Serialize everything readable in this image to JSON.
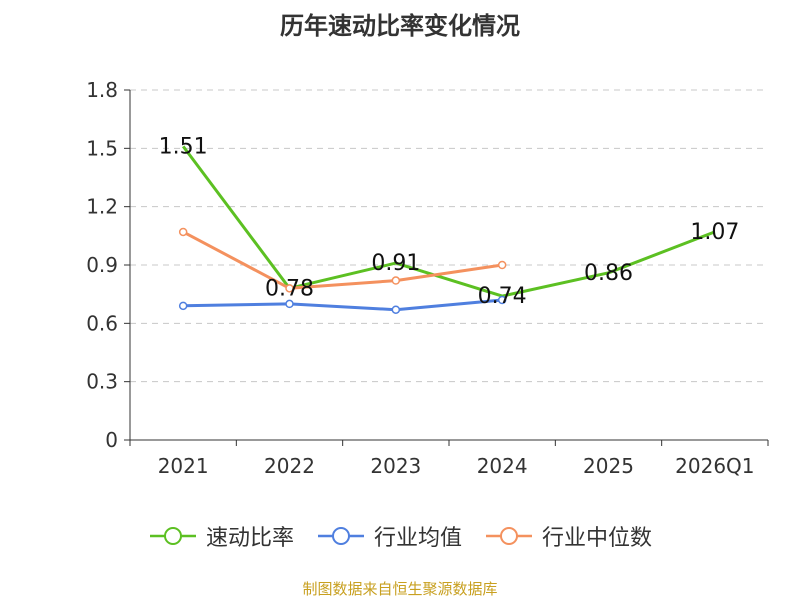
{
  "chart_data": {
    "type": "line",
    "title": "历年速动比率变化情况",
    "categories": [
      "2021",
      "2022",
      "2023",
      "2024",
      "2025",
      "2026Q1"
    ],
    "ylim": [
      0,
      1.8
    ],
    "yticks": [
      "0",
      "0.3",
      "0.6",
      "0.9",
      "1.2",
      "1.5",
      "1.8"
    ],
    "series": [
      {
        "name": "速动比率",
        "color": "#5cc022",
        "values": [
          1.51,
          0.78,
          0.91,
          0.74,
          0.86,
          1.07
        ],
        "labels": [
          "1.51",
          "0.78",
          "0.91",
          "0.74",
          "0.86",
          "1.07"
        ],
        "markers": false
      },
      {
        "name": "行业均值",
        "color": "#4f7fdf",
        "values": [
          0.69,
          0.7,
          0.67,
          0.72,
          null,
          null
        ],
        "markers": true
      },
      {
        "name": "行业中位数",
        "color": "#f4915e",
        "values": [
          1.07,
          0.78,
          0.82,
          0.9,
          null,
          null
        ],
        "markers": true
      }
    ]
  },
  "source_text": "制图数据来自恒生聚源数据库"
}
